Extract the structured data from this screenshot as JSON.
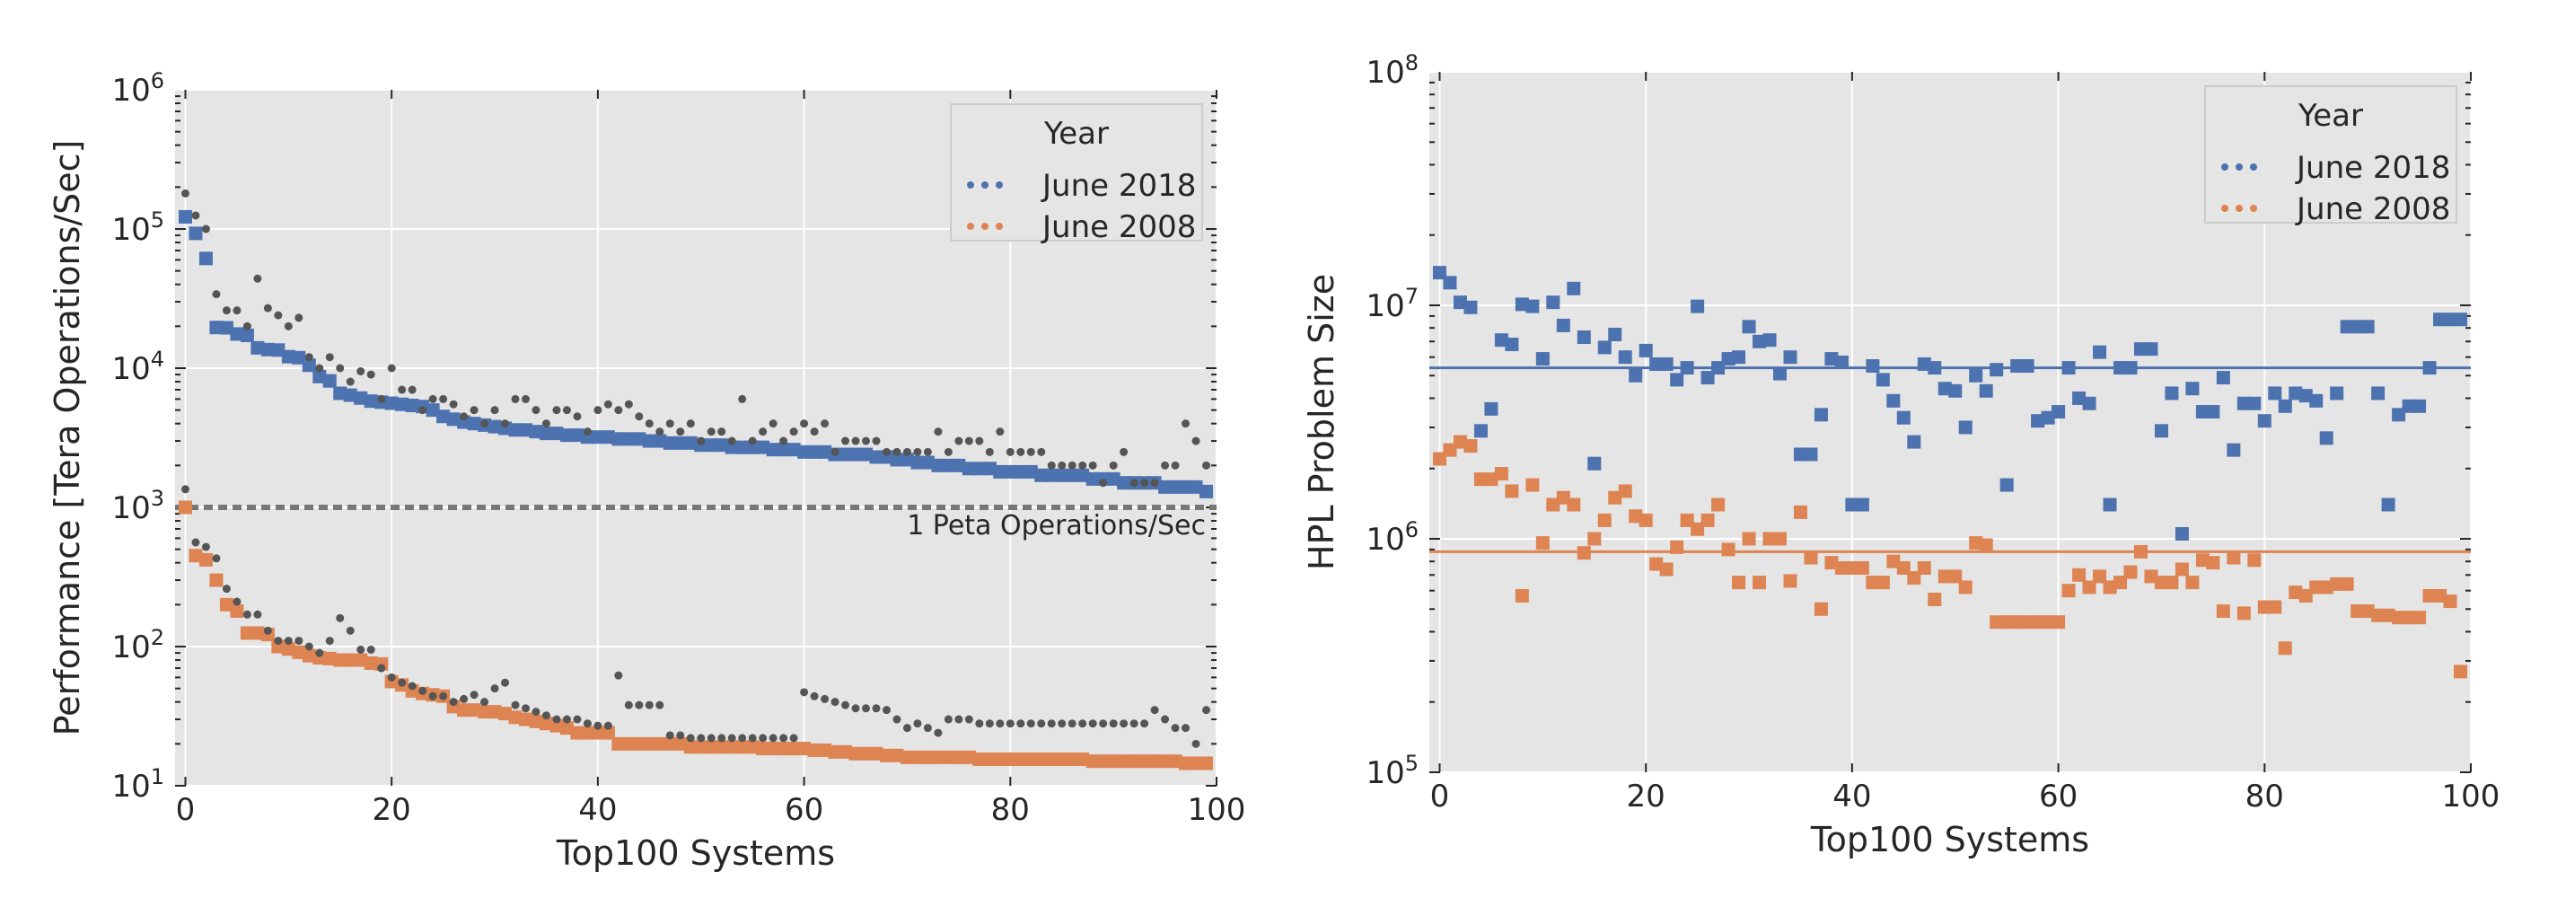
{
  "chart_data": [
    {
      "type": "scatter",
      "xlabel": "Top100 Systems",
      "ylabel": "Performance [Tera Operations/Sec]",
      "xlim": [
        -1,
        100
      ],
      "ylim": [
        10,
        1000000
      ],
      "yscale": "log",
      "x_ticks": [
        0,
        20,
        40,
        60,
        80,
        100
      ],
      "y_ticks": [
        {
          "base": "10",
          "exp": "1"
        },
        {
          "base": "10",
          "exp": "2"
        },
        {
          "base": "10",
          "exp": "3"
        },
        {
          "base": "10",
          "exp": "4"
        },
        {
          "base": "10",
          "exp": "5"
        },
        {
          "base": "10",
          "exp": "6"
        }
      ],
      "grid": true,
      "legend": {
        "title": "Year",
        "placement": "top-right",
        "entries": [
          {
            "label": "June 2018",
            "color": "#4c72b0"
          },
          {
            "label": "June 2008",
            "color": "#dd8452"
          }
        ]
      },
      "reference_line": {
        "y": 1000,
        "style": "dashed",
        "color": "#777777",
        "label": "1 Peta Operations/Sec"
      },
      "series": [
        {
          "name": "June 2018",
          "marker": "square",
          "color": "#4c72b0",
          "x_start": 0,
          "values": [
            122300,
            93000,
            61400,
            19600,
            19500,
            17600,
            17200,
            14000,
            13600,
            13500,
            12100,
            11900,
            10500,
            8700,
            8100,
            6600,
            6400,
            6100,
            5800,
            5700,
            5600,
            5500,
            5400,
            5300,
            5000,
            4500,
            4300,
            4100,
            4000,
            3900,
            3800,
            3700,
            3600,
            3600,
            3500,
            3400,
            3400,
            3300,
            3300,
            3200,
            3200,
            3200,
            3100,
            3100,
            3100,
            3000,
            3000,
            2900,
            2900,
            2900,
            2800,
            2800,
            2800,
            2700,
            2700,
            2700,
            2700,
            2600,
            2600,
            2600,
            2500,
            2500,
            2500,
            2400,
            2400,
            2400,
            2400,
            2300,
            2300,
            2200,
            2200,
            2100,
            2100,
            2000,
            2000,
            2000,
            1900,
            1900,
            1900,
            1800,
            1800,
            1800,
            1800,
            1700,
            1700,
            1700,
            1700,
            1700,
            1600,
            1600,
            1600,
            1500,
            1500,
            1500,
            1500,
            1400,
            1400,
            1400,
            1400,
            1300
          ]
        },
        {
          "name": "June 2008",
          "marker": "square",
          "color": "#dd8452",
          "x_start": 0,
          "values": [
            1000,
            450,
            420,
            300,
            200,
            180,
            125,
            125,
            122,
            100,
            96,
            91,
            86,
            83,
            82,
            80,
            80,
            80,
            76,
            75,
            56,
            53,
            48,
            46,
            45,
            44,
            37,
            35,
            35,
            34,
            34,
            33,
            31,
            30,
            29,
            28,
            27,
            26,
            24,
            24,
            24,
            24,
            20,
            20,
            20,
            20,
            20,
            20,
            20,
            19,
            19,
            19,
            19,
            19,
            19,
            19,
            18.5,
            18.5,
            18.5,
            18.5,
            18.5,
            18,
            18,
            17.5,
            17.5,
            17,
            17,
            17,
            16.5,
            16.5,
            16,
            16,
            16,
            16,
            16,
            16,
            16,
            15.5,
            15.5,
            15.5,
            15.5,
            15.5,
            15.5,
            15.5,
            15.5,
            15.5,
            15.5,
            15.5,
            15,
            15,
            15,
            15,
            15,
            15,
            15,
            15,
            15,
            14.5,
            14.5,
            14.5
          ]
        },
        {
          "marker": "circle",
          "color": "#555555",
          "x_start": 0,
          "values": [
            180000,
            125000,
            100000,
            34000,
            26000,
            26000,
            20000,
            44000,
            27000,
            24000,
            20000,
            23000,
            12000,
            10000,
            12000,
            10000,
            8000,
            9500,
            9000,
            6000,
            10000,
            7000,
            7000,
            5000,
            6000,
            6000,
            5500,
            4500,
            5000,
            4000,
            5000,
            4000,
            6000,
            6000,
            5000,
            4000,
            5000,
            5000,
            4500,
            3500,
            5000,
            5500,
            5000,
            5500,
            4500,
            4000,
            3500,
            4000,
            3500,
            4000,
            3000,
            3500,
            3500,
            3000,
            6000,
            3000,
            3500,
            4000,
            3000,
            3500,
            4000,
            3500,
            4000,
            2500,
            3000,
            3000,
            3000,
            3000,
            2500,
            2500,
            2500,
            2500,
            2500,
            3500,
            2500,
            3000,
            3000,
            3000,
            2500,
            3500,
            2500,
            2500,
            2500,
            2500,
            2000,
            2000,
            2000,
            2000,
            2000,
            1500,
            2000,
            2500,
            1500,
            1500,
            1500,
            2000,
            2000,
            4000,
            3000,
            2000
          ]
        },
        {
          "marker": "circle",
          "color": "#555555",
          "x_start": 0,
          "values": [
            1350,
            560,
            520,
            430,
            260,
            210,
            170,
            170,
            130,
            110,
            110,
            110,
            100,
            90,
            110,
            160,
            130,
            95,
            95,
            70,
            60,
            55,
            52,
            48,
            44,
            44,
            40,
            42,
            45,
            40,
            50,
            55,
            38,
            36,
            34,
            32,
            30,
            30,
            30,
            28,
            27,
            27,
            62,
            38,
            38,
            38,
            38,
            23,
            23,
            22,
            22,
            22,
            22,
            22,
            22,
            22,
            22,
            22,
            22,
            22,
            47,
            44,
            42,
            40,
            38,
            36,
            36,
            36,
            35,
            30,
            26,
            28,
            26,
            24,
            30,
            30,
            30,
            28,
            28,
            28,
            28,
            28,
            28,
            28,
            28,
            28,
            28,
            28,
            28,
            28,
            28,
            28,
            28,
            28,
            35,
            30,
            26,
            26,
            20,
            35
          ]
        }
      ]
    },
    {
      "type": "scatter",
      "xlabel": "Top100 Systems",
      "ylabel": "HPL Problem Size",
      "xlim": [
        -1,
        100
      ],
      "ylim": [
        100000,
        100000000
      ],
      "yscale": "log",
      "x_ticks": [
        0,
        20,
        40,
        60,
        80,
        100
      ],
      "y_ticks": [
        {
          "base": "10",
          "exp": "5"
        },
        {
          "base": "10",
          "exp": "6"
        },
        {
          "base": "10",
          "exp": "7"
        },
        {
          "base": "10",
          "exp": "8"
        }
      ],
      "grid": true,
      "legend": {
        "title": "Year",
        "placement": "top-right",
        "entries": [
          {
            "label": "June 2018",
            "color": "#4c72b0"
          },
          {
            "label": "June 2008",
            "color": "#dd8452"
          }
        ]
      },
      "reference_lines": [
        {
          "y": 5400000,
          "color": "#4c72b0"
        },
        {
          "y": 880000,
          "color": "#dd8452"
        }
      ],
      "series": [
        {
          "name": "June 2018",
          "marker": "square",
          "color": "#4c72b0",
          "x_start": 0,
          "values": [
            13800000,
            12500000,
            10300000,
            9800000,
            2900000,
            3600000,
            7100000,
            6800000,
            10100000,
            9900000,
            5900000,
            10300000,
            8200000,
            11800000,
            7300000,
            2100000,
            6600000,
            7500000,
            6000000,
            5000000,
            6400000,
            5600000,
            5600000,
            4800000,
            5400000,
            9900000,
            4900000,
            5400000,
            5900000,
            6000000,
            8100000,
            7000000,
            7100000,
            5100000,
            6000000,
            2300000,
            2300000,
            3400000,
            5900000,
            5700000,
            1400000,
            1400000,
            5500000,
            4800000,
            3900000,
            3300000,
            2600000,
            5600000,
            5400000,
            4400000,
            4300000,
            3000000,
            5000000,
            4300000,
            5300000,
            1700000,
            5500000,
            5500000,
            3200000,
            3300000,
            3500000,
            5400000,
            4000000,
            3800000,
            6300000,
            1400000,
            5400000,
            5400000,
            6500000,
            6500000,
            2900000,
            4200000,
            1050000,
            4400000,
            3500000,
            3500000,
            4900000,
            2400000,
            3800000,
            3800000,
            3200000,
            4200000,
            3700000,
            4200000,
            4100000,
            3900000,
            2700000,
            4200000,
            8100000,
            8100000,
            8100000,
            4200000,
            1400000,
            3400000,
            3700000,
            3700000,
            5400000,
            8700000,
            8700000,
            8700000
          ]
        },
        {
          "name": "June 2008",
          "marker": "square",
          "color": "#dd8452",
          "x_start": 0,
          "values": [
            2200000,
            2400000,
            2600000,
            2500000,
            1800000,
            1800000,
            1900000,
            1600000,
            570000,
            1700000,
            960000,
            1400000,
            1500000,
            1400000,
            870000,
            1000000,
            1200000,
            1500000,
            1600000,
            1250000,
            1200000,
            780000,
            740000,
            920000,
            1200000,
            1100000,
            1200000,
            1400000,
            900000,
            650000,
            1000000,
            650000,
            1000000,
            1000000,
            660000,
            1300000,
            830000,
            500000,
            790000,
            750000,
            750000,
            750000,
            650000,
            650000,
            800000,
            750000,
            680000,
            750000,
            550000,
            690000,
            690000,
            620000,
            960000,
            940000,
            440000,
            440000,
            440000,
            440000,
            440000,
            440000,
            440000,
            600000,
            700000,
            620000,
            690000,
            620000,
            650000,
            720000,
            880000,
            690000,
            650000,
            650000,
            740000,
            650000,
            810000,
            790000,
            490000,
            830000,
            480000,
            810000,
            510000,
            510000,
            340000,
            590000,
            570000,
            620000,
            620000,
            640000,
            640000,
            490000,
            490000,
            470000,
            470000,
            460000,
            460000,
            460000,
            570000,
            570000,
            540000,
            270000
          ]
        }
      ]
    }
  ]
}
